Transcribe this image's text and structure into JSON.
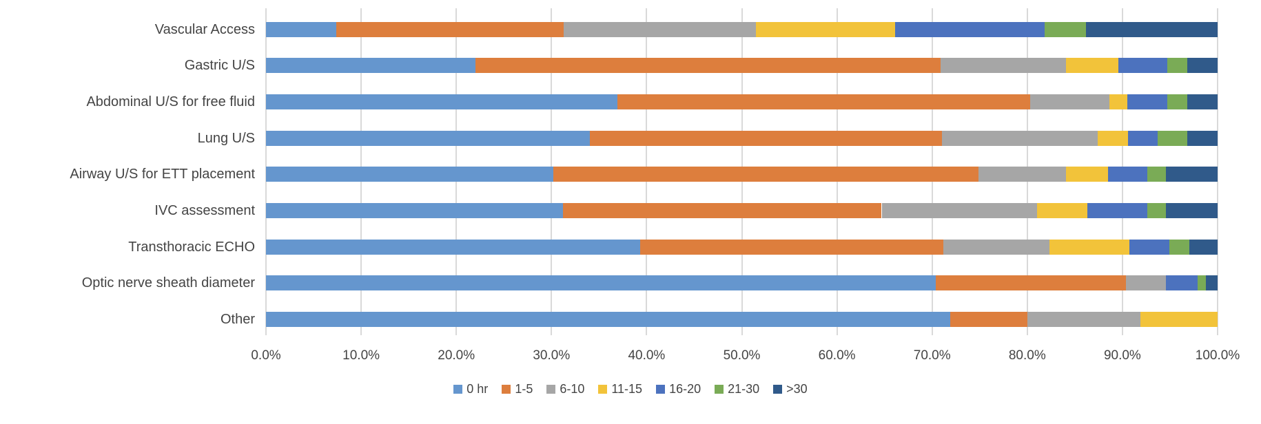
{
  "chart_data": {
    "type": "bar",
    "stacked": true,
    "orientation": "horizontal",
    "title": "",
    "xlabel": "",
    "ylabel": "",
    "unit": "percent",
    "xlim": [
      0,
      100
    ],
    "grid": true,
    "legend_position": "bottom",
    "categories": [
      "Vascular Access",
      "Gastric U/S",
      "Abdominal U/S for free fluid",
      "Lung U/S",
      "Airway U/S for ETT placement",
      "IVC assessment",
      "Transthoracic ECHO",
      "Optic nerve sheath diameter",
      "Other"
    ],
    "series": [
      {
        "name": "0 hr",
        "color": "#6596CE",
        "values": [
          7.4,
          22.0,
          36.9,
          34.0,
          30.2,
          31.2,
          39.3,
          70.4,
          71.9
        ]
      },
      {
        "name": "1-5",
        "color": "#DD7E3D",
        "values": [
          23.9,
          48.9,
          43.4,
          37.0,
          44.7,
          33.5,
          31.9,
          20.0,
          8.1
        ]
      },
      {
        "name": "6-10",
        "color": "#A6A6A6",
        "values": [
          20.2,
          13.2,
          8.3,
          16.4,
          9.2,
          16.3,
          11.1,
          4.2,
          11.9
        ]
      },
      {
        "name": "11-15",
        "color": "#F2C33A",
        "values": [
          14.6,
          5.5,
          1.9,
          3.2,
          4.4,
          5.3,
          8.4,
          0,
          8.1
        ]
      },
      {
        "name": "16-20",
        "color": "#4C72BE",
        "values": [
          15.7,
          5.1,
          4.2,
          3.1,
          4.1,
          6.3,
          4.2,
          3.3,
          0
        ]
      },
      {
        "name": "21-30",
        "color": "#7AAB56",
        "values": [
          4.4,
          2.1,
          2.1,
          3.1,
          2.0,
          2.0,
          2.1,
          0.9,
          0
        ]
      },
      {
        "name": ">30",
        "color": "#305A8A",
        "values": [
          13.8,
          3.2,
          3.2,
          3.2,
          5.4,
          5.4,
          3.0,
          1.2,
          0
        ]
      }
    ],
    "x_ticks": [
      "0.0%",
      "10.0%",
      "20.0%",
      "30.0%",
      "40.0%",
      "50.0%",
      "60.0%",
      "70.0%",
      "80.0%",
      "90.0%",
      "100.0%"
    ],
    "gridline_color": "#d9d9d9",
    "text_color": "#444444"
  }
}
